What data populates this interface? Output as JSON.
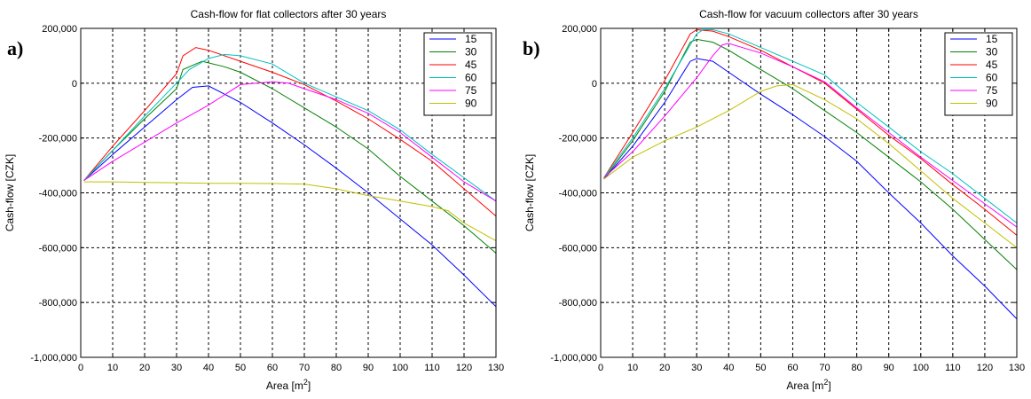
{
  "chart_data": [
    {
      "type": "line",
      "panel_label": "a)",
      "title": "Cash-flow for flat collectors after 30 years",
      "xlabel": "Area [m",
      "xlabel_sup": "2",
      "xlabel_end": "]",
      "ylabel": "Cash-flow [CZK]",
      "xlim": [
        0,
        130
      ],
      "ylim": [
        -1000000,
        200000
      ],
      "xticks": [
        "0",
        "10",
        "20",
        "30",
        "40",
        "50",
        "60",
        "70",
        "80",
        "90",
        "100",
        "110",
        "120",
        "130"
      ],
      "yticks": [
        "200,000",
        "0",
        "-200,000",
        "-400,000",
        "-600,000",
        "-800,000",
        "-1,000,000"
      ],
      "ytick_values": [
        200000,
        0,
        -200000,
        -400000,
        -600000,
        -800000,
        -1000000
      ],
      "grid": true,
      "legend_position": "top-right",
      "series": [
        {
          "name": "15",
          "color": "#0000ff",
          "x": [
            1,
            10,
            20,
            30,
            35,
            40,
            50,
            60,
            70,
            80,
            90,
            100,
            110,
            120,
            130
          ],
          "y": [
            -355000,
            -260000,
            -160000,
            -60000,
            -15000,
            -10000,
            -70000,
            -145000,
            -225000,
            -310000,
            -400000,
            -495000,
            -590000,
            -700000,
            -815000
          ]
        },
        {
          "name": "30",
          "color": "#008000",
          "x": [
            1,
            10,
            20,
            30,
            32,
            38,
            45,
            50,
            60,
            70,
            80,
            90,
            100,
            110,
            120,
            130
          ],
          "y": [
            -355000,
            -245000,
            -130000,
            -20000,
            50000,
            80000,
            60000,
            40000,
            -20000,
            -90000,
            -160000,
            -240000,
            -340000,
            -430000,
            -520000,
            -620000
          ]
        },
        {
          "name": "45",
          "color": "#ff0000",
          "x": [
            1,
            10,
            20,
            30,
            32,
            36,
            40,
            45,
            50,
            60,
            70,
            80,
            90,
            100,
            110,
            120,
            130
          ],
          "y": [
            -355000,
            -230000,
            -100000,
            35000,
            100000,
            130000,
            120000,
            100000,
            80000,
            40000,
            -5000,
            -65000,
            -130000,
            -205000,
            -285000,
            -385000,
            -485000
          ]
        },
        {
          "name": "60",
          "color": "#00c0c0",
          "x": [
            1,
            10,
            20,
            30,
            34,
            40,
            45,
            50,
            60,
            70,
            80,
            90,
            100,
            110,
            120,
            130
          ],
          "y": [
            -355000,
            -245000,
            -120000,
            0,
            50000,
            90000,
            105000,
            100000,
            70000,
            0,
            -50000,
            -100000,
            -170000,
            -260000,
            -345000,
            -430000
          ]
        },
        {
          "name": "75",
          "color": "#ff00ff",
          "x": [
            1,
            10,
            20,
            30,
            40,
            50,
            60,
            65,
            70,
            80,
            90,
            100,
            110,
            120,
            130
          ],
          "y": [
            -355000,
            -285000,
            -215000,
            -145000,
            -80000,
            -5000,
            5000,
            0,
            -20000,
            -60000,
            -110000,
            -180000,
            -270000,
            -360000,
            -430000
          ]
        },
        {
          "name": "90",
          "color": "#c0c000",
          "x": [
            1,
            10,
            20,
            30,
            40,
            50,
            60,
            70,
            80,
            90,
            100,
            110,
            115,
            120,
            130
          ],
          "y": [
            -360000,
            -360000,
            -362000,
            -363000,
            -365000,
            -365000,
            -366000,
            -368000,
            -385000,
            -410000,
            -430000,
            -450000,
            -465000,
            -510000,
            -575000
          ]
        }
      ]
    },
    {
      "type": "line",
      "panel_label": "b)",
      "title": "Cash-flow for vacuum collectors after 30 years",
      "xlabel": "Area [m",
      "xlabel_sup": "2",
      "xlabel_end": "]",
      "ylabel": "Cash-flow [CZK]",
      "xlim": [
        0,
        130
      ],
      "ylim": [
        -1000000,
        200000
      ],
      "xticks": [
        "0",
        "10",
        "20",
        "30",
        "40",
        "50",
        "60",
        "70",
        "80",
        "90",
        "100",
        "110",
        "120",
        "130"
      ],
      "yticks": [
        "200,000",
        "0",
        "-200,000",
        "-400,000",
        "-600,000",
        "-800,000",
        "-1,000,000"
      ],
      "ytick_values": [
        200000,
        0,
        -200000,
        -400000,
        -600000,
        -800000,
        -1000000
      ],
      "grid": true,
      "legend_position": "top-right",
      "series": [
        {
          "name": "15",
          "color": "#0000ff",
          "x": [
            1,
            10,
            20,
            28,
            30,
            35,
            40,
            50,
            60,
            70,
            80,
            90,
            100,
            110,
            120,
            130
          ],
          "y": [
            -350000,
            -230000,
            -70000,
            80000,
            90000,
            80000,
            40000,
            -40000,
            -115000,
            -195000,
            -285000,
            -400000,
            -510000,
            -630000,
            -740000,
            -860000
          ]
        },
        {
          "name": "30",
          "color": "#008000",
          "x": [
            1,
            10,
            20,
            28,
            30,
            35,
            40,
            50,
            60,
            70,
            80,
            90,
            100,
            110,
            120,
            130
          ],
          "y": [
            -350000,
            -210000,
            -30000,
            150000,
            160000,
            150000,
            120000,
            50000,
            -20000,
            -100000,
            -180000,
            -270000,
            -360000,
            -460000,
            -570000,
            -680000
          ]
        },
        {
          "name": "45",
          "color": "#ff0000",
          "x": [
            1,
            10,
            20,
            28,
            30,
            35,
            40,
            50,
            60,
            70,
            80,
            90,
            100,
            110,
            120,
            130
          ],
          "y": [
            -345000,
            -180000,
            10000,
            180000,
            195000,
            190000,
            170000,
            120000,
            60000,
            0,
            -95000,
            -190000,
            -275000,
            -370000,
            -460000,
            -555000
          ]
        },
        {
          "name": "60",
          "color": "#00c0c0",
          "x": [
            1,
            10,
            20,
            30,
            32,
            35,
            40,
            50,
            60,
            70,
            80,
            90,
            100,
            110,
            120,
            130
          ],
          "y": [
            -345000,
            -200000,
            -20000,
            180000,
            195000,
            195000,
            180000,
            130000,
            80000,
            30000,
            -70000,
            -160000,
            -250000,
            -330000,
            -420000,
            -510000
          ]
        },
        {
          "name": "75",
          "color": "#ff00ff",
          "x": [
            1,
            10,
            20,
            30,
            35,
            38,
            40,
            50,
            60,
            70,
            80,
            90,
            100,
            110,
            120,
            130
          ],
          "y": [
            -345000,
            -250000,
            -120000,
            20000,
            100000,
            140000,
            145000,
            110000,
            60000,
            5000,
            -90000,
            -180000,
            -270000,
            -355000,
            -440000,
            -525000
          ]
        },
        {
          "name": "90",
          "color": "#c0c000",
          "x": [
            1,
            10,
            20,
            30,
            40,
            50,
            55,
            60,
            70,
            80,
            90,
            100,
            110,
            120,
            130
          ],
          "y": [
            -350000,
            -270000,
            -210000,
            -160000,
            -100000,
            -30000,
            -10000,
            -5000,
            -60000,
            -130000,
            -220000,
            -320000,
            -420000,
            -510000,
            -600000
          ]
        }
      ]
    }
  ]
}
